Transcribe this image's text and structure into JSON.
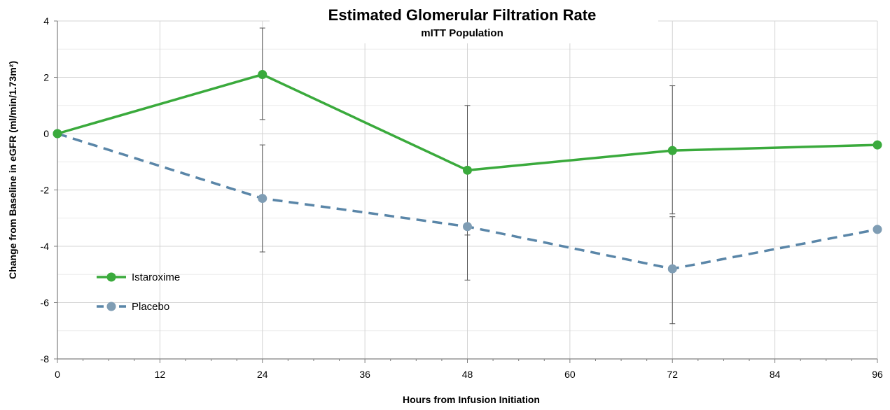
{
  "chart_data": {
    "type": "line",
    "title": "Estimated Glomerular Filtration Rate",
    "subtitle": "mITT Population",
    "xlabel": "Hours from Infusion Initiation",
    "ylabel": "Change from Baseline in eGFR (ml/min/1.73m²)",
    "x": [
      0,
      24,
      48,
      72,
      96
    ],
    "xticks": [
      0,
      12,
      24,
      36,
      48,
      60,
      72,
      84,
      96
    ],
    "yticks": [
      4,
      2,
      0,
      -2,
      -4,
      -6,
      -8
    ],
    "xlim": [
      0,
      96
    ],
    "ylim": [
      -8,
      4
    ],
    "grid": true,
    "legend_position": "lower-left",
    "series": [
      {
        "name": "Istaroxime",
        "color": "#3aaa3c",
        "line_style": "solid",
        "values": [
          0,
          2.1,
          -1.3,
          -0.6,
          -0.4
        ],
        "error_upper": [
          null,
          3.75,
          1.0,
          1.7,
          null
        ],
        "error_lower": [
          null,
          0.5,
          -3.6,
          -2.85,
          null
        ]
      },
      {
        "name": "Placebo",
        "color": "#5a86a8",
        "marker_color": "#7f9db4",
        "line_style": "dashed",
        "values": [
          0,
          -2.3,
          -3.3,
          -4.8,
          -3.4
        ],
        "error_upper": [
          null,
          -0.4,
          null,
          -2.95,
          null
        ],
        "error_lower": [
          null,
          -4.2,
          -5.2,
          -6.75,
          null
        ]
      }
    ]
  }
}
